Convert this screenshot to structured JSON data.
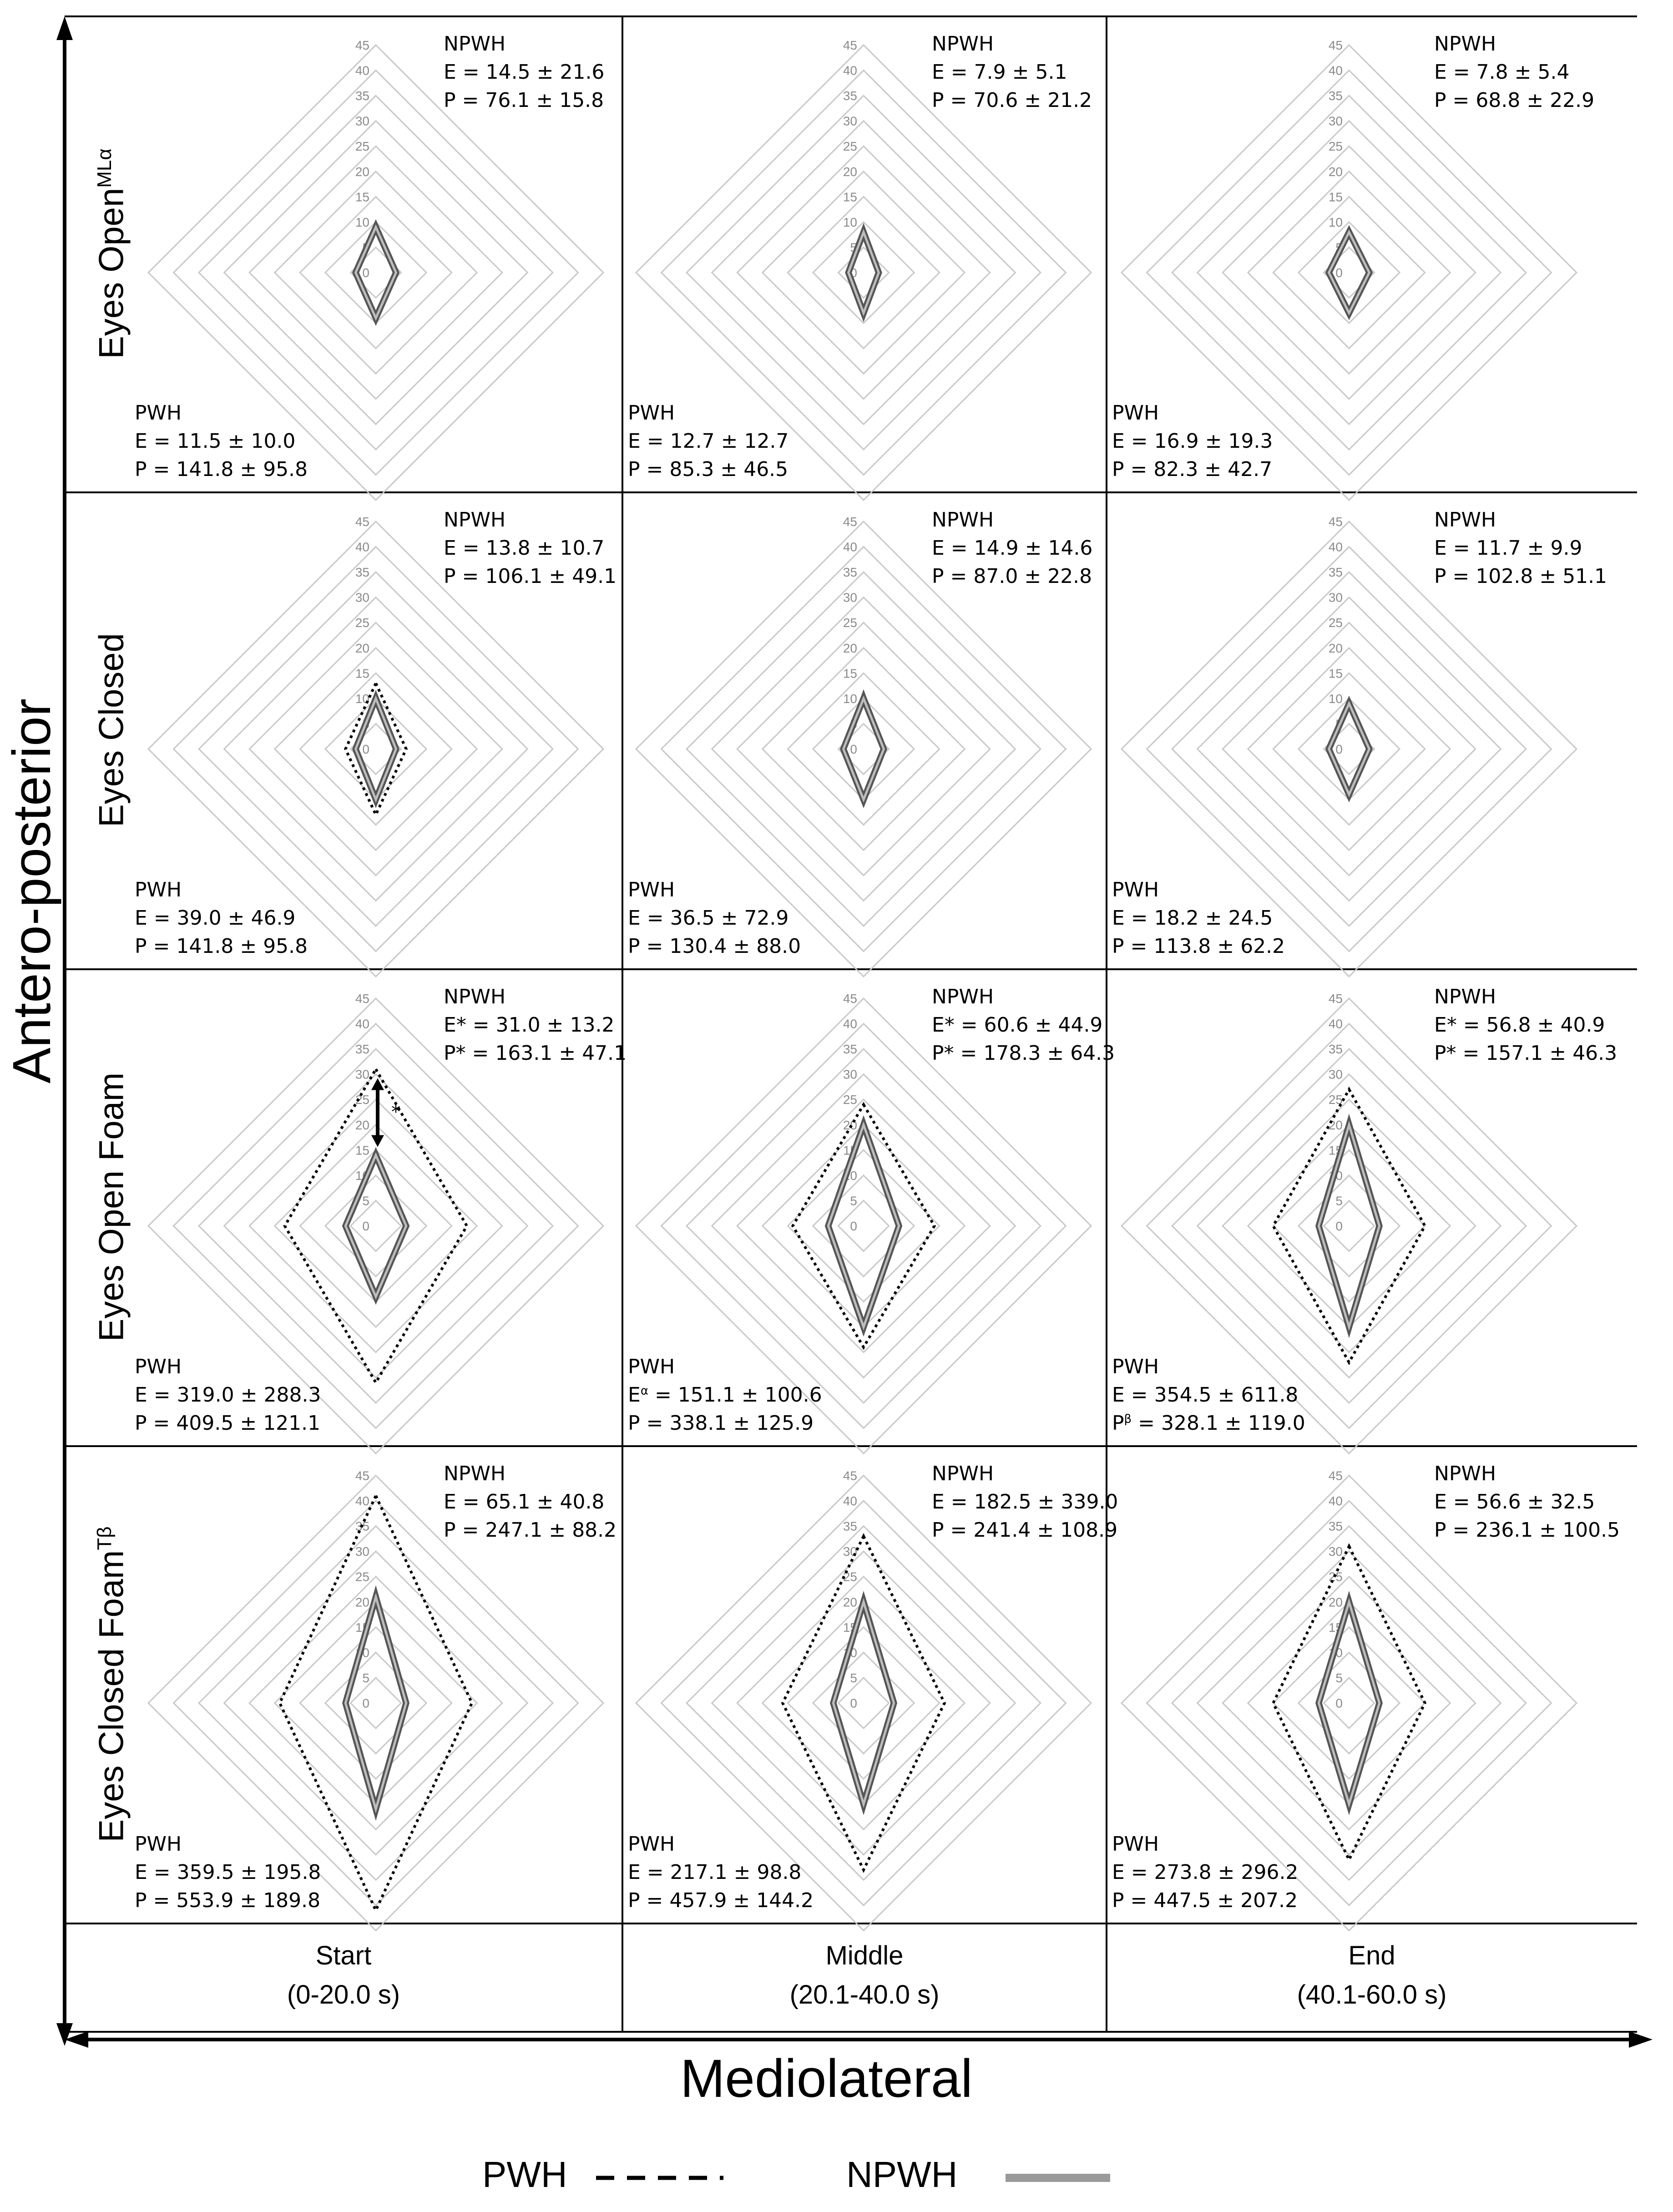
{
  "chart_data": {
    "type": "radar",
    "axis_labels": {
      "x": "Mediolateral",
      "y": "Antero-posterior"
    },
    "radial_ticks": [
      0,
      5,
      10,
      15,
      20,
      25,
      30,
      35,
      40,
      45
    ],
    "rlim": [
      0,
      45
    ],
    "grid": true,
    "series": [
      {
        "name": "PWH",
        "style": "dotted",
        "color": "#000000"
      },
      {
        "name": "NPWH",
        "style": "solid",
        "color": "#9a9a9a"
      }
    ],
    "columns": [
      {
        "name": "Start",
        "range": "(0-20.0 s)"
      },
      {
        "name": "Middle",
        "range": "(20.1-40.0 s)"
      },
      {
        "name": "End",
        "range": "(40.1-60.0 s)"
      }
    ],
    "rows": [
      {
        "label": "Eyes Open",
        "label_sup": "MLα",
        "cells": [
          {
            "pwh": {
              "ap": 9,
              "ml": 4,
              "lines": [
                {
                  "k": "E",
                  "s": "",
                  "v": "11.5 ± 10.0"
                },
                {
                  "k": "P",
                  "s": "",
                  "v": "141.8 ± 95.8"
                }
              ]
            },
            "npwh": {
              "ap": 9,
              "ml": 4,
              "lines": [
                {
                  "k": "E",
                  "s": "",
                  "v": "14.5 ± 21.6"
                },
                {
                  "k": "P",
                  "s": "",
                  "v": "76.1 ± 15.8"
                }
              ]
            }
          },
          {
            "pwh": {
              "ap": 8,
              "ml": 3,
              "lines": [
                {
                  "k": "E",
                  "s": "",
                  "v": "12.7 ± 12.7"
                },
                {
                  "k": "P",
                  "s": "",
                  "v": "85.3 ± 46.5"
                }
              ]
            },
            "npwh": {
              "ap": 8,
              "ml": 3,
              "lines": [
                {
                  "k": "E",
                  "s": "",
                  "v": "7.9 ± 5.1"
                },
                {
                  "k": "P",
                  "s": "",
                  "v": "70.6 ± 21.2"
                }
              ]
            }
          },
          {
            "pwh": {
              "ap": 8,
              "ml": 4,
              "lines": [
                {
                  "k": "E",
                  "s": "",
                  "v": "16.9 ± 19.3"
                },
                {
                  "k": "P",
                  "s": "",
                  "v": "82.3 ± 42.7"
                }
              ]
            },
            "npwh": {
              "ap": 8,
              "ml": 4,
              "lines": [
                {
                  "k": "E",
                  "s": "",
                  "v": "7.8 ± 5.4"
                },
                {
                  "k": "P",
                  "s": "",
                  "v": "68.8 ± 22.9"
                }
              ]
            }
          }
        ]
      },
      {
        "label": "Eyes Closed",
        "label_sup": "",
        "cells": [
          {
            "pwh": {
              "ap": 13,
              "ml": 6,
              "lines": [
                {
                  "k": "E",
                  "s": "",
                  "v": "39.0 ± 46.9"
                },
                {
                  "k": "P",
                  "s": "",
                  "v": "141.8 ± 95.8"
                }
              ]
            },
            "npwh": {
              "ap": 10,
              "ml": 4,
              "lines": [
                {
                  "k": "E",
                  "s": "",
                  "v": "13.8 ± 10.7"
                },
                {
                  "k": "P",
                  "s": "",
                  "v": "106.1 ± 49.1"
                }
              ]
            }
          },
          {
            "pwh": {
              "ap": 11,
              "ml": 4,
              "lines": [
                {
                  "k": "E",
                  "s": "",
                  "v": "36.5 ± 72.9"
                },
                {
                  "k": "P",
                  "s": "",
                  "v": "130.4 ± 88.0"
                }
              ]
            },
            "npwh": {
              "ap": 10,
              "ml": 4,
              "lines": [
                {
                  "k": "E",
                  "s": "",
                  "v": "14.9 ± 14.6"
                },
                {
                  "k": "P",
                  "s": "",
                  "v": "87.0 ± 22.8"
                }
              ]
            }
          },
          {
            "pwh": {
              "ap": 9,
              "ml": 4,
              "lines": [
                {
                  "k": "E",
                  "s": "",
                  "v": "18.2 ± 24.5"
                },
                {
                  "k": "P",
                  "s": "",
                  "v": "113.8 ± 62.2"
                }
              ]
            },
            "npwh": {
              "ap": 9,
              "ml": 4,
              "lines": [
                {
                  "k": "E",
                  "s": "",
                  "v": "11.7 ± 9.9"
                },
                {
                  "k": "P",
                  "s": "",
                  "v": "102.8 ± 51.1"
                }
              ]
            }
          }
        ]
      },
      {
        "label": "Eyes Open Foam",
        "label_sup": "",
        "cells": [
          {
            "pwh": {
              "ap": 31,
              "ml": 18,
              "lines": [
                {
                  "k": "E",
                  "s": "",
                  "v": "319.0 ± 288.3"
                },
                {
                  "k": "P",
                  "s": "",
                  "v": "409.5 ± 121.1"
                }
              ]
            },
            "npwh": {
              "ap": 14,
              "ml": 6,
              "lines": [
                {
                  "k": "E",
                  "s": "*",
                  "v": "31.0 ± 13.2"
                },
                {
                  "k": "P",
                  "s": "*",
                  "v": "163.1 ± 47.1"
                }
              ]
            },
            "significance": "*"
          },
          {
            "pwh": {
              "ap": 24,
              "ml": 14,
              "lines": [
                {
                  "k": "E",
                  "s": "α",
                  "v": "151.1 ± 100.6"
                },
                {
                  "k": "P",
                  "s": "",
                  "v": "338.1 ± 125.9"
                }
              ]
            },
            "npwh": {
              "ap": 20,
              "ml": 7,
              "lines": [
                {
                  "k": "E",
                  "s": "*",
                  "v": "60.6 ± 44.9"
                },
                {
                  "k": "P",
                  "s": "*",
                  "v": "178.3 ± 64.3"
                }
              ]
            }
          },
          {
            "pwh": {
              "ap": 27,
              "ml": 15,
              "lines": [
                {
                  "k": "E",
                  "s": "",
                  "v": "354.5 ± 611.8"
                },
                {
                  "k": "P",
                  "s": "β",
                  "v": "328.1 ± 119.0"
                }
              ]
            },
            "npwh": {
              "ap": 20,
              "ml": 6,
              "lines": [
                {
                  "k": "E",
                  "s": "*",
                  "v": "56.8 ± 40.9"
                },
                {
                  "k": "P",
                  "s": "*",
                  "v": "157.1 ± 46.3"
                }
              ]
            }
          }
        ]
      },
      {
        "label": "Eyes Closed Foam",
        "label_sup": "Tβ",
        "cells": [
          {
            "pwh": {
              "ap": 41,
              "ml": 19,
              "lines": [
                {
                  "k": "E",
                  "s": "",
                  "v": "359.5 ± 195.8"
                },
                {
                  "k": "P",
                  "s": "",
                  "v": "553.9 ± 189.8"
                }
              ]
            },
            "npwh": {
              "ap": 21,
              "ml": 6,
              "lines": [
                {
                  "k": "E",
                  "s": "",
                  "v": "65.1 ± 40.8"
                },
                {
                  "k": "P",
                  "s": "",
                  "v": "247.1 ± 88.2"
                }
              ]
            }
          },
          {
            "pwh": {
              "ap": 33,
              "ml": 16,
              "lines": [
                {
                  "k": "E",
                  "s": "",
                  "v": "217.1 ± 98.8"
                },
                {
                  "k": "P",
                  "s": "",
                  "v": "457.9 ± 144.2"
                }
              ]
            },
            "npwh": {
              "ap": 20,
              "ml": 6,
              "lines": [
                {
                  "k": "E",
                  "s": "",
                  "v": "182.5 ± 339.0"
                },
                {
                  "k": "P",
                  "s": "",
                  "v": "241.4 ± 108.9"
                }
              ]
            }
          },
          {
            "pwh": {
              "ap": 31,
              "ml": 15,
              "lines": [
                {
                  "k": "E",
                  "s": "",
                  "v": "273.8 ± 296.2"
                },
                {
                  "k": "P",
                  "s": "",
                  "v": "447.5 ± 207.2"
                }
              ]
            },
            "npwh": {
              "ap": 20,
              "ml": 6,
              "lines": [
                {
                  "k": "E",
                  "s": "",
                  "v": "56.6 ± 32.5"
                },
                {
                  "k": "P",
                  "s": "",
                  "v": "236.1 ± 100.5"
                }
              ]
            }
          }
        ]
      }
    ]
  }
}
